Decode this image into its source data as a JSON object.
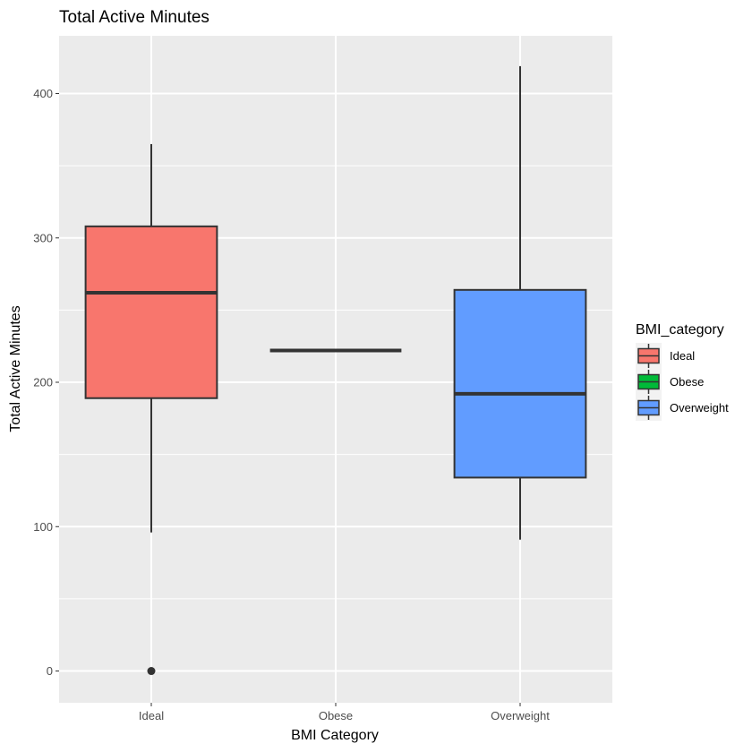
{
  "chart_data": {
    "type": "boxplot",
    "title": "Total Active Minutes",
    "xlabel": "BMI Category",
    "ylabel": "Total Active Minutes",
    "ylim": [
      -22,
      440
    ],
    "yticks": [
      0,
      100,
      200,
      300,
      400
    ],
    "grid": true,
    "legend_position": "right",
    "legend_title": "BMI_category",
    "categories": [
      "Ideal",
      "Obese",
      "Overweight"
    ],
    "series": [
      {
        "name": "Ideal",
        "color": "#F8766D",
        "min": 96,
        "q1": 189,
        "median": 262,
        "q3": 308,
        "max": 365,
        "outliers": [
          0
        ]
      },
      {
        "name": "Obese",
        "color": "#00BA38",
        "min": 222,
        "q1": 222,
        "median": 222,
        "q3": 222,
        "max": 222,
        "outliers": []
      },
      {
        "name": "Overweight",
        "color": "#619CFF",
        "min": 91,
        "q1": 134,
        "median": 192,
        "q3": 264,
        "max": 419,
        "outliers": []
      }
    ]
  }
}
